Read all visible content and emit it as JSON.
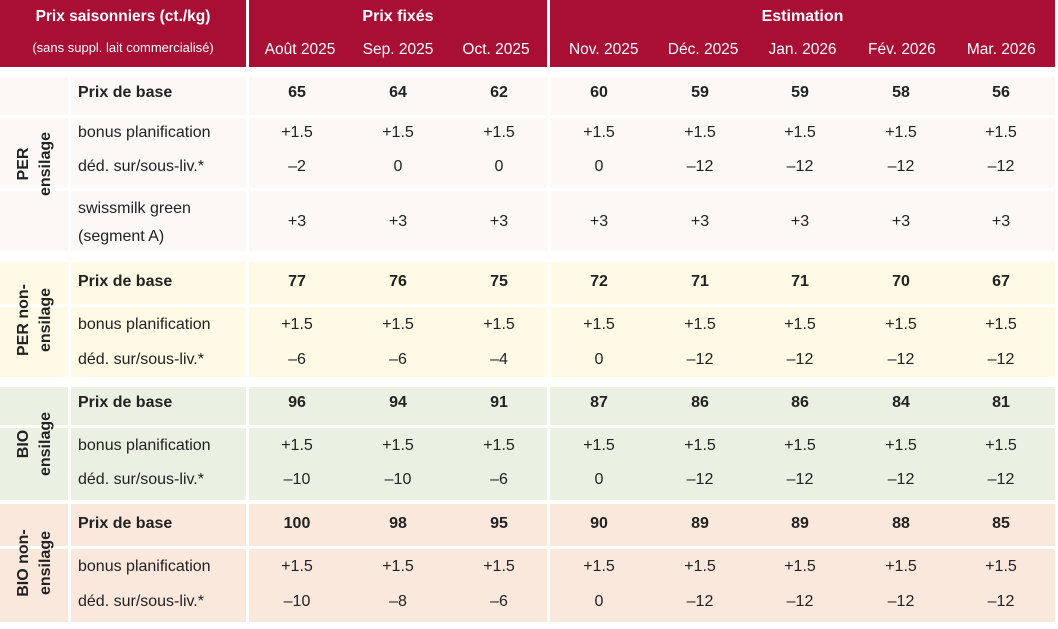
{
  "header": {
    "title": "Prix saisonniers (ct./kg)",
    "subtitle": "(sans suppl. lait commercialisé)",
    "group_fixed": "Prix fixés",
    "group_estimate": "Estimation",
    "months": [
      "Août 2025",
      "Sep. 2025",
      "Oct. 2025",
      "Nov. 2025",
      "Déc. 2025",
      "Jan. 2026",
      "Fév. 2026",
      "Mar. 2026"
    ]
  },
  "labels": {
    "base": "Prix de base",
    "bonus": "bonus planification",
    "ded": "déd. sur/sous-liv.*",
    "green_1": "swissmilk green",
    "green_2": "(segment A)"
  },
  "groups": {
    "per": {
      "line1": "PER",
      "line2": "ensilage"
    },
    "pern": {
      "line1": "PER non-",
      "line2": "ensilage"
    },
    "bio": {
      "line1": "BIO",
      "line2": "ensilage"
    },
    "bion": {
      "line1": "BIO non-",
      "line2": "ensilage"
    }
  },
  "values": {
    "per_base": [
      "65",
      "64",
      "62",
      "60",
      "59",
      "59",
      "58",
      "56"
    ],
    "per_bonus": [
      "+1.5",
      "+1.5",
      "+1.5",
      "+1.5",
      "+1.5",
      "+1.5",
      "+1.5",
      "+1.5"
    ],
    "per_ded": [
      "–2",
      "0",
      "0",
      "0",
      "–12",
      "–12",
      "–12",
      "–12"
    ],
    "per_green": [
      "+3",
      "+3",
      "+3",
      "+3",
      "+3",
      "+3",
      "+3",
      "+3"
    ],
    "pern_base": [
      "77",
      "76",
      "75",
      "72",
      "71",
      "71",
      "70",
      "67"
    ],
    "pern_bonus": [
      "+1.5",
      "+1.5",
      "+1.5",
      "+1.5",
      "+1.5",
      "+1.5",
      "+1.5",
      "+1.5"
    ],
    "pern_ded": [
      "–6",
      "–6",
      "–4",
      "0",
      "–12",
      "–12",
      "–12",
      "–12"
    ],
    "bio_base": [
      "96",
      "94",
      "91",
      "87",
      "86",
      "86",
      "84",
      "81"
    ],
    "bio_bonus": [
      "+1.5",
      "+1.5",
      "+1.5",
      "+1.5",
      "+1.5",
      "+1.5",
      "+1.5",
      "+1.5"
    ],
    "bio_ded": [
      "–10",
      "–10",
      "–6",
      "0",
      "–12",
      "–12",
      "–12",
      "–12"
    ],
    "bion_base": [
      "100",
      "98",
      "95",
      "90",
      "89",
      "89",
      "88",
      "85"
    ],
    "bion_bonus": [
      "+1.5",
      "+1.5",
      "+1.5",
      "+1.5",
      "+1.5",
      "+1.5",
      "+1.5",
      "+1.5"
    ],
    "bion_ded": [
      "–10",
      "–8",
      "–6",
      "0",
      "–12",
      "–12",
      "–12",
      "–12"
    ]
  }
}
